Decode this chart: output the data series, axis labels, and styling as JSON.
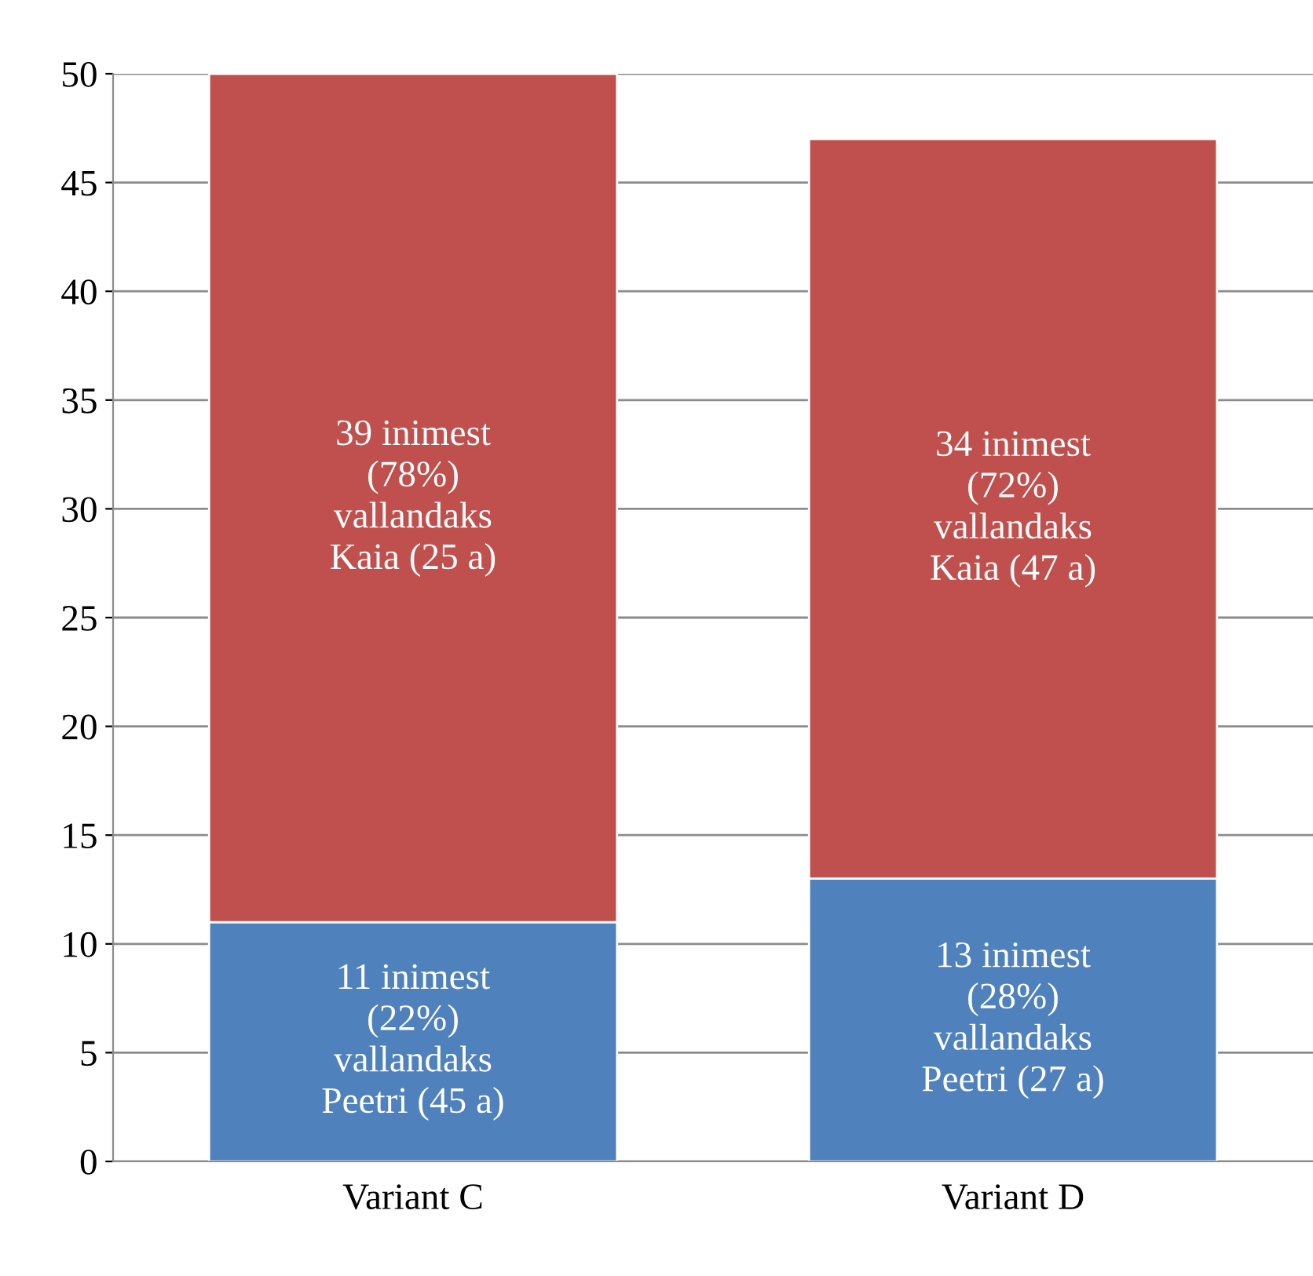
{
  "chart_data": {
    "type": "bar",
    "stacked": true,
    "categories": [
      "Variant C",
      "Variant D"
    ],
    "series": [
      {
        "color": "#4f81bd",
        "values": [
          11,
          13
        ],
        "value_labels": [
          "11 inimest\n(22%)\nvallandaks\nPeetri (45 a)",
          "13 inimest\n(28%)\nvallandaks\nPeetri (27 a)"
        ]
      },
      {
        "color": "#c0504d",
        "values": [
          39,
          34
        ],
        "value_labels": [
          "39 inimest\n(78%)\nvallandaks\nKaia (25 a)",
          "34 inimest\n(72%)\nvallandaks\nKaia (47 a)"
        ]
      }
    ],
    "ylim": [
      0,
      50
    ],
    "yticks": [
      0,
      5,
      10,
      15,
      20,
      25,
      30,
      35,
      40,
      45,
      50
    ],
    "grid": "y",
    "legend": false
  }
}
